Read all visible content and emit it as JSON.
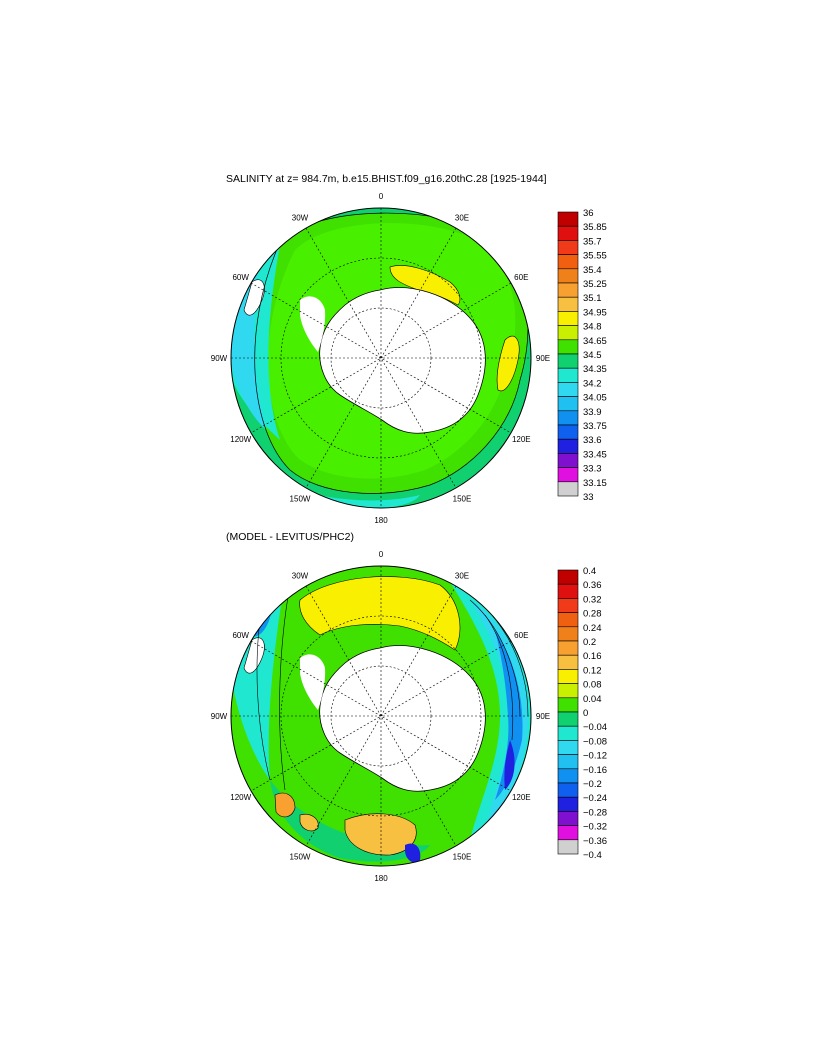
{
  "panels": [
    {
      "title": "SALINITY at z= 984.7m, b.e15.BHIST.f09_g16.20thC.28 [1925-1944]",
      "lon_labels": [
        "0",
        "30E",
        "60E",
        "90E",
        "120E",
        "150E",
        "180",
        "150W",
        "120W",
        "90W",
        "60W",
        "30W"
      ],
      "colorbar_levels": [
        "36",
        "35.85",
        "35.7",
        "35.55",
        "35.4",
        "35.25",
        "35.1",
        "34.95",
        "34.8",
        "34.65",
        "34.5",
        "34.35",
        "34.2",
        "34.05",
        "33.9",
        "33.75",
        "33.6",
        "33.45",
        "33.3",
        "33.15",
        "33"
      ]
    },
    {
      "title": "(MODEL - LEVITUS/PHC2)",
      "lon_labels": [
        "0",
        "30E",
        "60E",
        "90E",
        "120E",
        "150E",
        "180",
        "150W",
        "120W",
        "90W",
        "60W",
        "30W"
      ],
      "colorbar_levels": [
        "0.4",
        "0.36",
        "0.32",
        "0.28",
        "0.24",
        "0.2",
        "0.16",
        "0.12",
        "0.08",
        "0.04",
        "0",
        "−0.04",
        "−0.08",
        "−0.12",
        "−0.16",
        "−0.2",
        "−0.24",
        "−0.28",
        "−0.32",
        "−0.36",
        "−0.4"
      ]
    }
  ],
  "colorbar_colors": [
    "#c00000",
    "#e01010",
    "#f03a1a",
    "#f06010",
    "#f0801a",
    "#f8a030",
    "#f8c040",
    "#f8f000",
    "#c8f000",
    "#40e000",
    "#10d070",
    "#20e8d0",
    "#30d8f0",
    "#20c0f0",
    "#1090f0",
    "#1060f0",
    "#2020e0",
    "#8010d0",
    "#e010e0",
    "#d0d0d0",
    "#707070"
  ]
}
